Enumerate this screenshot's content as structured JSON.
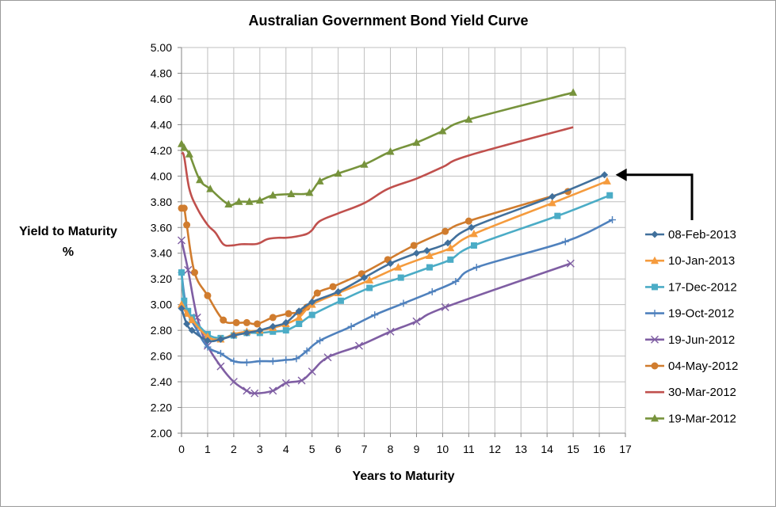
{
  "chart_data": {
    "type": "line",
    "title": "Australian Government Bond Yield Curve",
    "xlabel": "Years to Maturity",
    "ylabel_line1": "Yield to Maturity",
    "ylabel_line2": "%",
    "xlim": [
      0,
      17
    ],
    "ylim": [
      2.0,
      5.0
    ],
    "xticks": [
      "0",
      "1",
      "2",
      "3",
      "4",
      "5",
      "6",
      "7",
      "8",
      "9",
      "10",
      "11",
      "12",
      "13",
      "14",
      "15",
      "16",
      "17"
    ],
    "yticks": [
      "2.00",
      "2.20",
      "2.40",
      "2.60",
      "2.80",
      "3.00",
      "3.20",
      "3.40",
      "3.60",
      "3.80",
      "4.00",
      "4.20",
      "4.40",
      "4.60",
      "4.80",
      "5.00"
    ],
    "grid": true,
    "legend_position": "right",
    "annotation": "arrow pointing to the 08-Feb-2013 curve endpoint",
    "series": [
      {
        "name": "08-Feb-2013",
        "color": "#41709c",
        "marker": "diamond",
        "x": [
          0.0,
          0.2,
          0.4,
          1.0,
          1.5,
          2.0,
          2.5,
          3.0,
          3.5,
          4.0,
          4.5,
          5.0,
          6.0,
          7.0,
          8.0,
          9.0,
          9.4,
          10.2,
          11.1,
          14.2,
          16.2
        ],
        "y": [
          2.97,
          2.85,
          2.8,
          2.72,
          2.73,
          2.76,
          2.78,
          2.8,
          2.83,
          2.86,
          2.95,
          3.02,
          3.1,
          3.21,
          3.32,
          3.4,
          3.42,
          3.48,
          3.6,
          3.84,
          4.01
        ]
      },
      {
        "name": "10-Jan-2013",
        "color": "#f59b3d",
        "marker": "triangle",
        "x": [
          0.0,
          0.2,
          0.4,
          1.0,
          1.5,
          2.0,
          2.5,
          3.0,
          3.5,
          4.0,
          4.5,
          5.0,
          6.0,
          7.2,
          8.3,
          9.5,
          10.3,
          11.2,
          14.2,
          16.3
        ],
        "y": [
          3.0,
          2.93,
          2.88,
          2.75,
          2.73,
          2.77,
          2.79,
          2.8,
          2.82,
          2.85,
          2.9,
          3.0,
          3.09,
          3.19,
          3.29,
          3.38,
          3.44,
          3.55,
          3.79,
          3.96
        ]
      },
      {
        "name": "17-Dec-2012",
        "color": "#4bacc6",
        "marker": "square",
        "x": [
          0.0,
          0.1,
          0.25,
          0.4,
          1.0,
          1.5,
          2.0,
          2.5,
          3.0,
          3.5,
          4.0,
          4.5,
          5.0,
          6.1,
          7.2,
          8.4,
          9.5,
          10.3,
          11.2,
          14.4,
          16.4
        ],
        "y": [
          3.25,
          3.03,
          2.95,
          2.9,
          2.77,
          2.74,
          2.76,
          2.78,
          2.78,
          2.79,
          2.8,
          2.85,
          2.92,
          3.03,
          3.13,
          3.21,
          3.29,
          3.35,
          3.46,
          3.69,
          3.85
        ]
      },
      {
        "name": "19-Oct-2012",
        "color": "#4f81bd",
        "marker": "plus",
        "x": [
          0.0,
          0.2,
          0.6,
          1.0,
          1.5,
          2.0,
          2.5,
          3.0,
          3.5,
          4.0,
          4.4,
          4.8,
          5.3,
          6.5,
          7.4,
          8.5,
          9.6,
          10.5,
          11.3,
          14.7,
          16.5
        ],
        "y": [
          3.25,
          2.97,
          2.8,
          2.67,
          2.62,
          2.56,
          2.55,
          2.56,
          2.56,
          2.57,
          2.58,
          2.64,
          2.72,
          2.83,
          2.92,
          3.01,
          3.1,
          3.18,
          3.29,
          3.49,
          3.66
        ]
      },
      {
        "name": "19-Jun-2012",
        "color": "#7f5ea3",
        "marker": "x",
        "x": [
          0.0,
          0.25,
          0.6,
          1.0,
          1.5,
          2.0,
          2.5,
          2.8,
          3.5,
          4.0,
          4.6,
          5.0,
          5.6,
          6.8,
          8.0,
          9.0,
          10.1,
          14.9
        ],
        "y": [
          3.5,
          3.27,
          2.9,
          2.68,
          2.52,
          2.4,
          2.33,
          2.31,
          2.33,
          2.39,
          2.41,
          2.48,
          2.59,
          2.68,
          2.79,
          2.87,
          2.98,
          3.32
        ]
      },
      {
        "name": "04-May-2012",
        "color": "#d07c2e",
        "marker": "circle",
        "x": [
          0.0,
          0.1,
          0.2,
          0.5,
          1.0,
          1.6,
          2.1,
          2.5,
          2.9,
          3.5,
          4.1,
          4.5,
          4.8,
          5.2,
          5.8,
          6.9,
          7.9,
          8.9,
          10.1,
          11.0,
          14.8
        ],
        "y": [
          3.75,
          3.75,
          3.62,
          3.25,
          3.07,
          2.88,
          2.86,
          2.86,
          2.85,
          2.9,
          2.93,
          2.94,
          2.98,
          3.09,
          3.14,
          3.24,
          3.35,
          3.46,
          3.57,
          3.65,
          3.88
        ]
      },
      {
        "name": "30-Mar-2012",
        "color": "#c0504d",
        "marker": "none",
        "x": [
          0.0,
          0.1,
          0.3,
          0.6,
          1.0,
          1.3,
          1.6,
          1.9,
          2.3,
          2.8,
          3.0,
          3.3,
          3.7,
          4.0,
          4.4,
          4.8,
          5.0,
          5.3,
          6.0,
          7.0,
          7.9,
          9.0,
          10.0,
          11.0,
          15.0
        ],
        "y": [
          4.18,
          4.15,
          3.9,
          3.75,
          3.62,
          3.56,
          3.47,
          3.46,
          3.47,
          3.47,
          3.48,
          3.51,
          3.52,
          3.52,
          3.53,
          3.55,
          3.58,
          3.65,
          3.71,
          3.79,
          3.9,
          3.98,
          4.07,
          4.16,
          4.38
        ]
      },
      {
        "name": "19-Mar-2012",
        "color": "#77933c",
        "marker": "triangle",
        "x": [
          0.0,
          0.1,
          0.3,
          0.7,
          1.1,
          1.8,
          2.2,
          2.6,
          3.0,
          3.5,
          4.2,
          4.9,
          5.3,
          6.0,
          7.0,
          8.0,
          9.0,
          10.0,
          11.0,
          15.0
        ],
        "y": [
          4.25,
          4.22,
          4.17,
          3.97,
          3.9,
          3.78,
          3.8,
          3.8,
          3.81,
          3.85,
          3.86,
          3.87,
          3.96,
          4.02,
          4.09,
          4.19,
          4.26,
          4.35,
          4.44,
          4.65
        ]
      }
    ]
  }
}
